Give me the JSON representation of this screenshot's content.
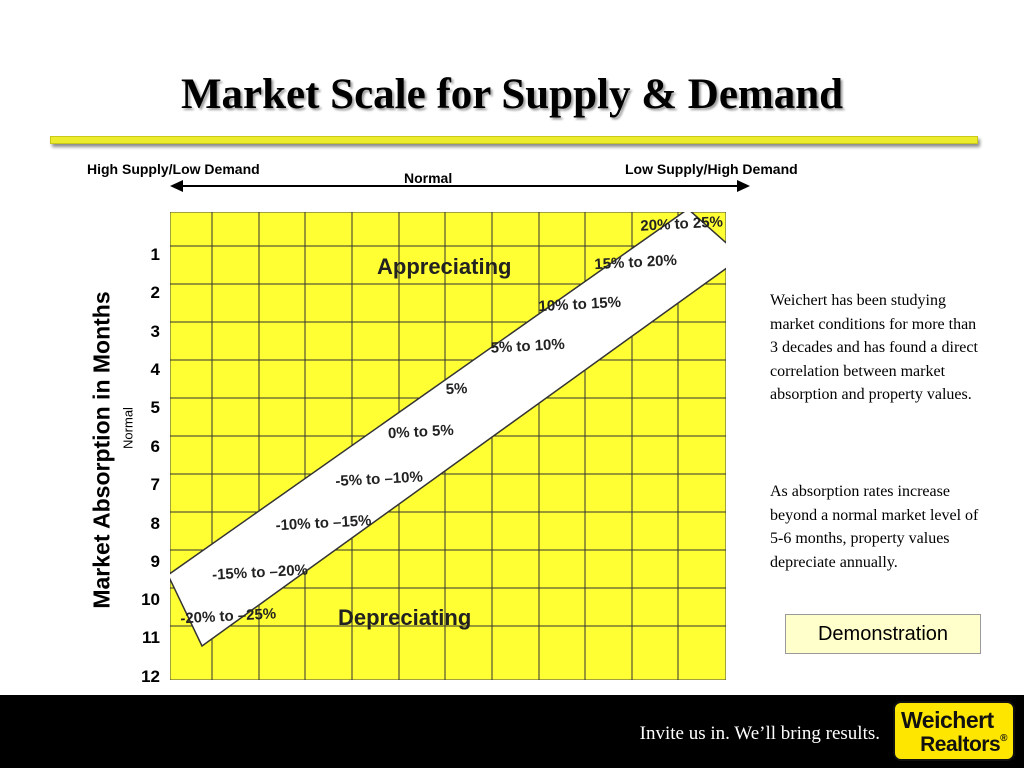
{
  "title": "Market Scale for Supply & Demand",
  "scale": {
    "left_label": "High Supply/Low Demand",
    "center_label": "Normal",
    "right_label": "Low Supply/High Demand"
  },
  "axis": {
    "ylabel": "Market Absorption in Months",
    "normal_label": "Normal",
    "months": [
      "1",
      "2",
      "3",
      "4",
      "5",
      "6",
      "7",
      "8",
      "9",
      "10",
      "11",
      "12"
    ]
  },
  "regions": {
    "upper": "Appreciating",
    "lower": "Depreciating"
  },
  "band_labels": [
    "20% to 25%",
    "15% to 20%",
    "10% to 15%",
    "5% to 10%",
    "5%",
    "0% to 5%",
    "-5% to –10%",
    "-10% to –15%",
    "-15% to –20%",
    "-20% to –25%"
  ],
  "colors": {
    "grid_fill": "#ffff33",
    "rule": "#ecec2c",
    "button_fill": "#ffffcc",
    "footer": "#000000",
    "logo": "#ffe600"
  },
  "description": {
    "p1": "Weichert has been studying market conditions for more than 3 decades and has found a direct correlation between market absorption and property values.",
    "p2": "As absorption rates increase beyond a normal market level of 5-6 months, property values depreciate annually."
  },
  "button": {
    "label": "Demonstration"
  },
  "footer": {
    "tagline": "Invite us in. We’ll bring results.",
    "logo_line1": "Weichert",
    "logo_line2": "Realtors",
    "logo_mark": "®"
  }
}
